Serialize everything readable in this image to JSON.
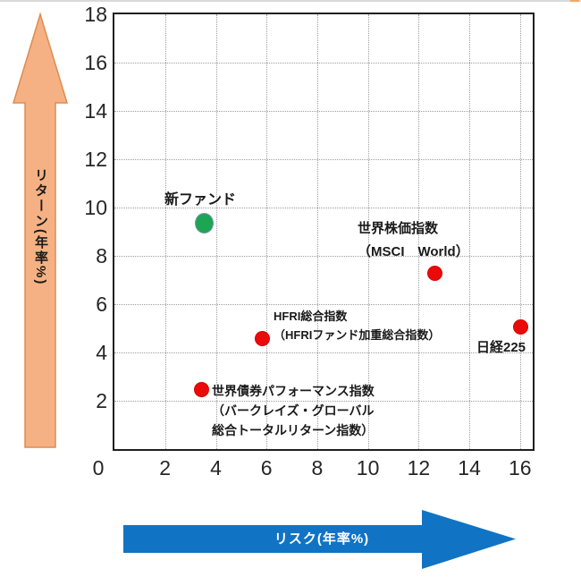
{
  "style": {
    "plot_border_color": "#1f1f1f",
    "grid_color": "#9d9d9d",
    "tick_color": "#262626",
    "y_arrow_fill": "#F5B183",
    "y_arrow_stroke": "#DF8A52",
    "x_arrow_fill": "#1173C4",
    "x_arrow_text_color": "#ffffff",
    "new_fund_color": "#1DA652",
    "index_point_color": "#EB0A0A"
  },
  "chart_data": {
    "type": "scatter",
    "title": "",
    "xlabel": "リスク(年率%)",
    "ylabel": "リターン(年率%)",
    "xlim": [
      0,
      16.5
    ],
    "ylim": [
      0,
      18
    ],
    "x_ticks": [
      0,
      2,
      4,
      6,
      8,
      10,
      12,
      14,
      16
    ],
    "y_ticks": [
      2,
      4,
      6,
      8,
      10,
      12,
      14,
      16,
      18
    ],
    "grid": "dotted",
    "legend": "none",
    "points": [
      {
        "key": "new-fund",
        "x": 3.5,
        "y": 9.4,
        "color": "#1DA652",
        "size": 19,
        "label_lines": [
          "新ファンド"
        ]
      },
      {
        "key": "msci-world",
        "x": 12.6,
        "y": 7.3,
        "color": "#EB0A0A",
        "size": 15,
        "label_lines": [
          "世界株価指数",
          "（MSCI　World）"
        ]
      },
      {
        "key": "hfri-composite",
        "x": 5.8,
        "y": 4.6,
        "color": "#EB0A0A",
        "size": 15,
        "label_lines": [
          "HFRI総合指数",
          "（HFRIファンド加重総合指数）"
        ]
      },
      {
        "key": "nikkei225",
        "x": 16.0,
        "y": 5.1,
        "color": "#EB0A0A",
        "size": 15,
        "label_lines": [
          "日経225"
        ]
      },
      {
        "key": "global-bond",
        "x": 3.4,
        "y": 2.5,
        "color": "#EB0A0A",
        "size": 15,
        "label_lines": [
          "世界債券パフォーマンス指数",
          "（バークレイズ・グローバル",
          "総合トータルリターン指数）"
        ]
      }
    ]
  }
}
